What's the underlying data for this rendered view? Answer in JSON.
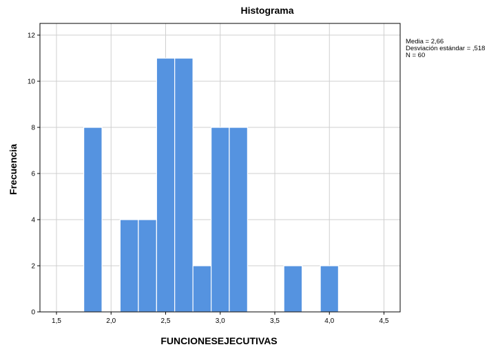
{
  "chart_data": {
    "type": "bar",
    "subtype": "histogram",
    "title": "Histograma",
    "xlabel": "FUNCIONESEJECUTIVAS",
    "ylabel": "Frecuencia",
    "xlim": [
      1.4,
      4.65
    ],
    "ylim": [
      0,
      12.5
    ],
    "xticks": [
      1.5,
      2.0,
      2.5,
      3.0,
      3.5,
      4.0,
      4.5
    ],
    "xtick_labels": [
      "1,5",
      "2,0",
      "2,5",
      "3,0",
      "3,5",
      "4,0",
      "4,5"
    ],
    "yticks": [
      0,
      2,
      4,
      6,
      8,
      10,
      12
    ],
    "ytick_labels": [
      "0",
      "2",
      "4",
      "6",
      "8",
      "10",
      "12"
    ],
    "grid": true,
    "bar_color": "#5593e0",
    "bins": [
      {
        "x0": 1.75,
        "x1": 1.917,
        "count": 8
      },
      {
        "x0": 2.083,
        "x1": 2.25,
        "count": 4
      },
      {
        "x0": 2.25,
        "x1": 2.417,
        "count": 4
      },
      {
        "x0": 2.417,
        "x1": 2.583,
        "count": 11
      },
      {
        "x0": 2.583,
        "x1": 2.75,
        "count": 11
      },
      {
        "x0": 2.75,
        "x1": 2.917,
        "count": 2
      },
      {
        "x0": 2.917,
        "x1": 3.083,
        "count": 8
      },
      {
        "x0": 3.083,
        "x1": 3.25,
        "count": 8
      },
      {
        "x0": 3.583,
        "x1": 3.75,
        "count": 2
      },
      {
        "x0": 3.917,
        "x1": 4.083,
        "count": 2
      }
    ],
    "stats": {
      "mean_label": "Media = 2,66",
      "sd_label": "Desviación estándar = ,518",
      "n_label": "N = 60"
    }
  }
}
